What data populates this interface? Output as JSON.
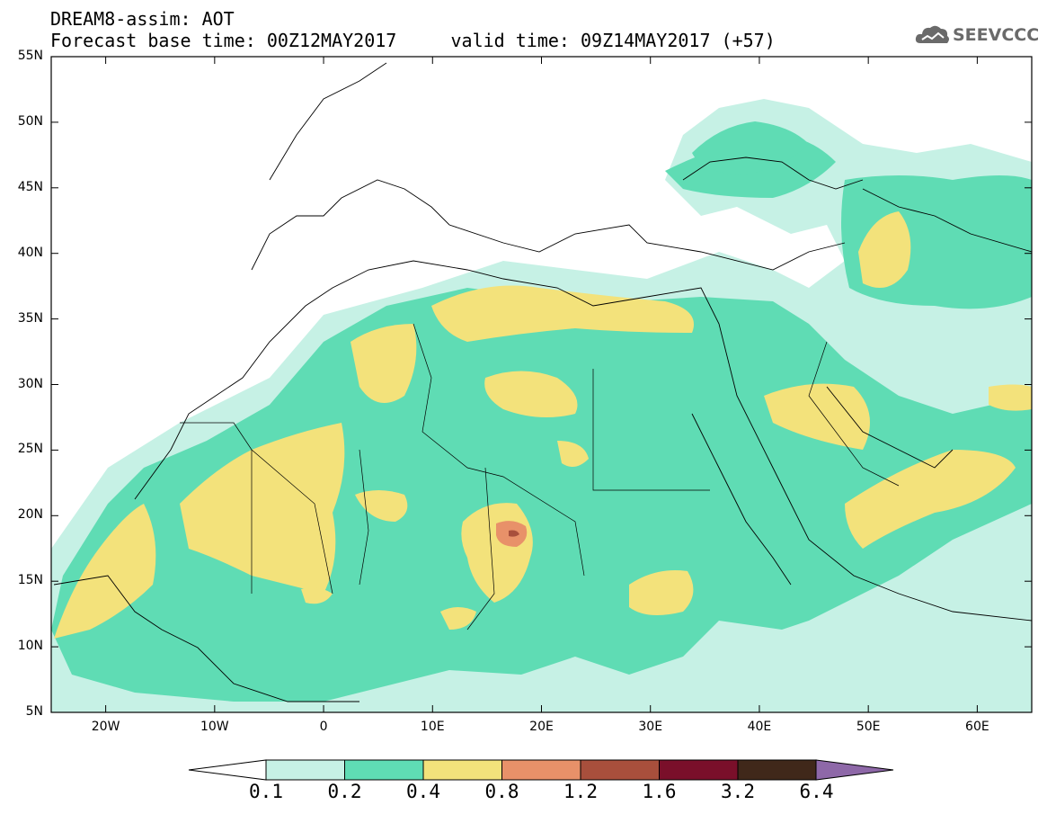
{
  "header": {
    "line1": "DREAM8-assim: AOT",
    "line2": "Forecast base time: 00Z12MAY2017     valid time: 09Z14MAY2017 (+57)"
  },
  "logo": {
    "text": "SEEVCCC",
    "icon": "cloud-logo-icon",
    "color": "#6a6a6a"
  },
  "map": {
    "lat_labels": [
      "55N",
      "50N",
      "45N",
      "40N",
      "35N",
      "30N",
      "25N",
      "20N",
      "15N",
      "10N",
      "5N"
    ],
    "lon_labels": [
      "20W",
      "10W",
      "0",
      "10E",
      "20E",
      "30E",
      "40E",
      "50E",
      "60E"
    ],
    "lat_range": [
      5,
      55
    ],
    "lon_range": [
      -25,
      65
    ]
  },
  "colorbar": {
    "levels": [
      "0.1",
      "0.2",
      "0.4",
      "0.8",
      "1.2",
      "1.6",
      "3.2",
      "6.4"
    ],
    "colors": [
      "#c6f1e5",
      "#5fdcb4",
      "#f3e27b",
      "#e89169",
      "#a84f3c",
      "#7a0f2a",
      "#40281a",
      "#8e68a8"
    ],
    "below_color": "#ffffff"
  }
}
